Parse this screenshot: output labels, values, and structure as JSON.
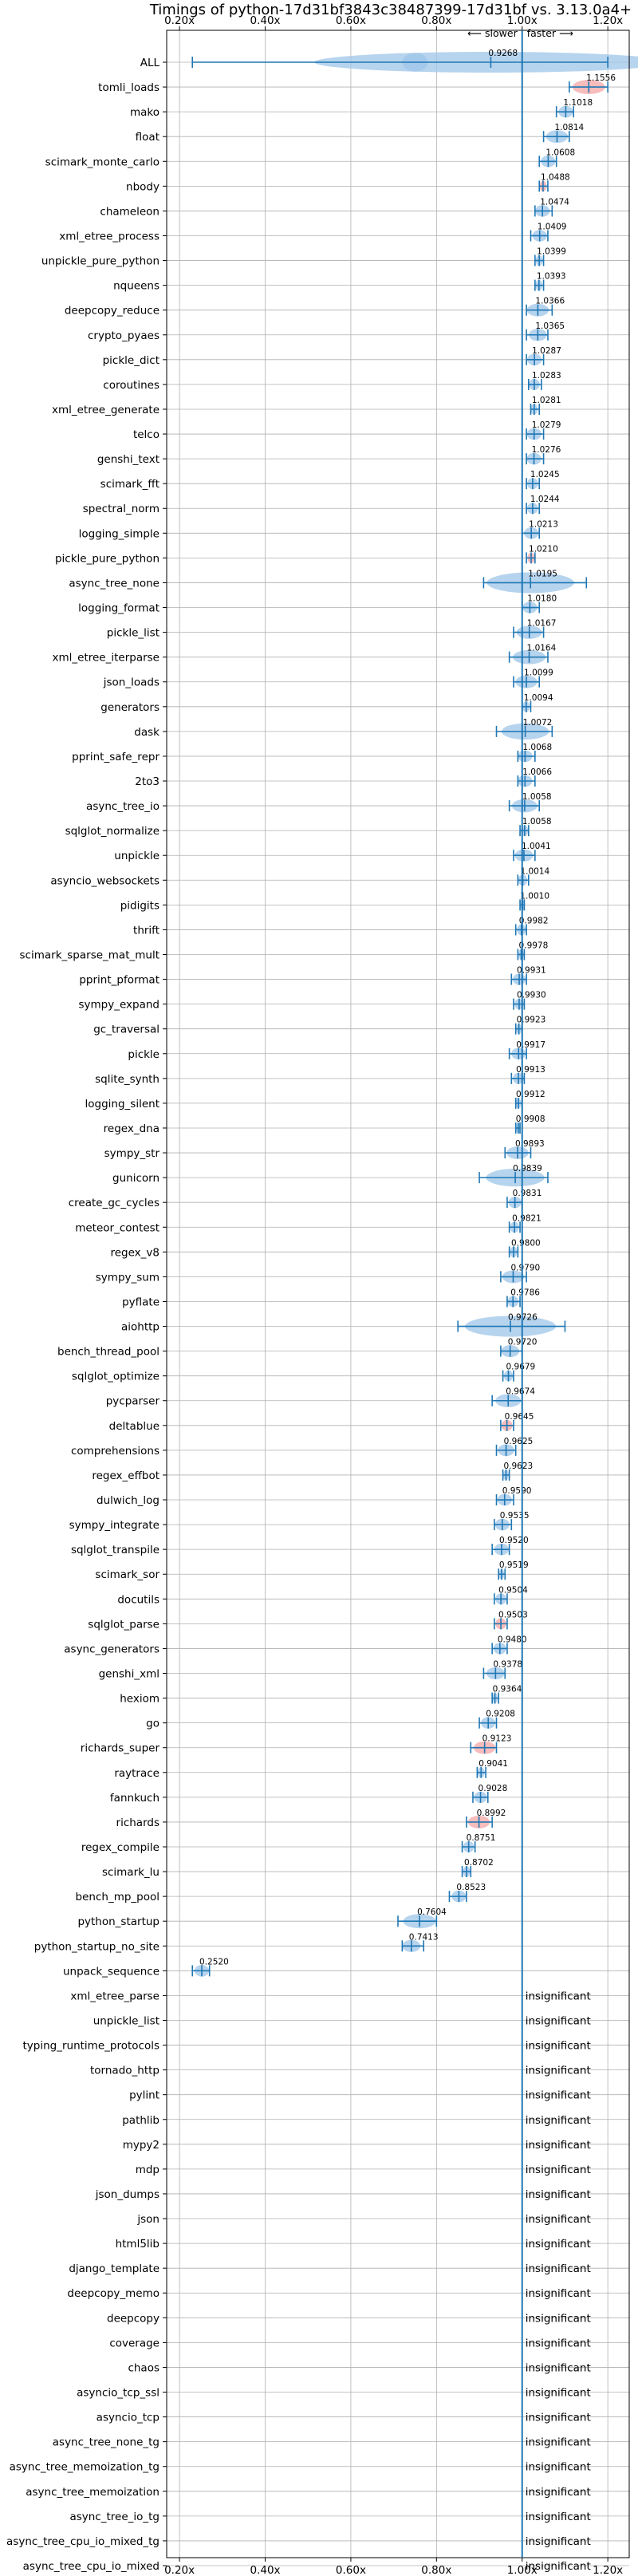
{
  "chart_data": {
    "type": "violin",
    "title": "Timings of python-17d31bf3843c38487399-17d31bf vs. 3.13.0a4+",
    "xlabel": "",
    "ylabel": "",
    "xlim": [
      0.17,
      1.25
    ],
    "xticks": [
      0.2,
      0.4,
      0.6,
      0.8,
      1.0,
      1.2
    ],
    "xtick_labels": [
      "0.20x",
      "0.40x",
      "0.60x",
      "0.80x",
      "1.00x",
      "1.20x"
    ],
    "grid": true,
    "slower_label": "⟵ slower",
    "faster_label": "faster ⟶",
    "insignificant_label": "insignificant",
    "colors": {
      "violin": "#9fc5e8",
      "highlight": "#f4a6a6",
      "line": "#1f77b4",
      "grid": "#b0b0b0"
    },
    "benchmarks": [
      {
        "name": "ALL",
        "value": 0.9268,
        "label": "0.9268",
        "lo": 0.23,
        "hi": 1.2,
        "spread": 0.12
      },
      {
        "name": "tomli_loads",
        "value": 1.1556,
        "label": "1.1556",
        "lo": 1.11,
        "hi": 1.2,
        "spread": 0.03,
        "hl": true
      },
      {
        "name": "mako",
        "value": 1.1018,
        "label": "1.1018",
        "lo": 1.08,
        "hi": 1.12,
        "spread": 0.02
      },
      {
        "name": "float",
        "value": 1.0814,
        "label": "1.0814",
        "lo": 1.05,
        "hi": 1.11,
        "spread": 0.025
      },
      {
        "name": "scimark_monte_carlo",
        "value": 1.0608,
        "label": "1.0608",
        "lo": 1.04,
        "hi": 1.08,
        "spread": 0.015
      },
      {
        "name": "nbody",
        "value": 1.0488,
        "label": "1.0488",
        "lo": 1.04,
        "hi": 1.06,
        "spread": 0.01,
        "hl": true
      },
      {
        "name": "chameleon",
        "value": 1.0474,
        "label": "1.0474",
        "lo": 1.03,
        "hi": 1.07,
        "spread": 0.015
      },
      {
        "name": "xml_etree_process",
        "value": 1.0409,
        "label": "1.0409",
        "lo": 1.02,
        "hi": 1.06,
        "spread": 0.015
      },
      {
        "name": "unpickle_pure_python",
        "value": 1.0399,
        "label": "1.0399",
        "lo": 1.03,
        "hi": 1.05,
        "spread": 0.008
      },
      {
        "name": "nqueens",
        "value": 1.0393,
        "label": "1.0393",
        "lo": 1.03,
        "hi": 1.05,
        "spread": 0.01
      },
      {
        "name": "deepcopy_reduce",
        "value": 1.0366,
        "label": "1.0366",
        "lo": 1.01,
        "hi": 1.07,
        "spread": 0.02
      },
      {
        "name": "crypto_pyaes",
        "value": 1.0365,
        "label": "1.0365",
        "lo": 1.01,
        "hi": 1.06,
        "spread": 0.02
      },
      {
        "name": "pickle_dict",
        "value": 1.0287,
        "label": "1.0287",
        "lo": 1.01,
        "hi": 1.05,
        "spread": 0.015
      },
      {
        "name": "coroutines",
        "value": 1.0283,
        "label": "1.0283",
        "lo": 1.015,
        "hi": 1.045,
        "spread": 0.01
      },
      {
        "name": "xml_etree_generate",
        "value": 1.0281,
        "label": "1.0281",
        "lo": 1.02,
        "hi": 1.04,
        "spread": 0.008
      },
      {
        "name": "telco",
        "value": 1.0279,
        "label": "1.0279",
        "lo": 1.01,
        "hi": 1.05,
        "spread": 0.012
      },
      {
        "name": "genshi_text",
        "value": 1.0276,
        "label": "1.0276",
        "lo": 1.01,
        "hi": 1.05,
        "spread": 0.015
      },
      {
        "name": "scimark_fft",
        "value": 1.0245,
        "label": "1.0245",
        "lo": 1.01,
        "hi": 1.04,
        "spread": 0.01
      },
      {
        "name": "spectral_norm",
        "value": 1.0244,
        "label": "1.0244",
        "lo": 1.01,
        "hi": 1.04,
        "spread": 0.01
      },
      {
        "name": "logging_simple",
        "value": 1.0213,
        "label": "1.0213",
        "lo": 1.0,
        "hi": 1.04,
        "spread": 0.015
      },
      {
        "name": "pickle_pure_python",
        "value": 1.021,
        "label": "1.0210",
        "lo": 1.01,
        "hi": 1.03,
        "spread": 0.01,
        "hl": true
      },
      {
        "name": "async_tree_none",
        "value": 1.0195,
        "label": "1.0195",
        "lo": 0.91,
        "hi": 1.15,
        "spread": 0.05
      },
      {
        "name": "logging_format",
        "value": 1.018,
        "label": "1.0180",
        "lo": 1.0,
        "hi": 1.04,
        "spread": 0.015
      },
      {
        "name": "pickle_list",
        "value": 1.0167,
        "label": "1.0167",
        "lo": 0.98,
        "hi": 1.05,
        "spread": 0.02
      },
      {
        "name": "xml_etree_iterparse",
        "value": 1.0164,
        "label": "1.0164",
        "lo": 0.97,
        "hi": 1.06,
        "spread": 0.02
      },
      {
        "name": "json_loads",
        "value": 1.0099,
        "label": "1.0099",
        "lo": 0.98,
        "hi": 1.04,
        "spread": 0.015
      },
      {
        "name": "generators",
        "value": 1.0094,
        "label": "1.0094",
        "lo": 1.0,
        "hi": 1.02,
        "spread": 0.006
      },
      {
        "name": "dask",
        "value": 1.0072,
        "label": "1.0072",
        "lo": 0.94,
        "hi": 1.07,
        "spread": 0.04
      },
      {
        "name": "pprint_safe_repr",
        "value": 1.0068,
        "label": "1.0068",
        "lo": 0.99,
        "hi": 1.03,
        "spread": 0.012
      },
      {
        "name": "2to3",
        "value": 1.0066,
        "label": "1.0066",
        "lo": 0.99,
        "hi": 1.03,
        "spread": 0.012
      },
      {
        "name": "async_tree_io",
        "value": 1.0058,
        "label": "1.0058",
        "lo": 0.97,
        "hi": 1.04,
        "spread": 0.02
      },
      {
        "name": "sqlglot_normalize",
        "value": 1.0058,
        "label": "1.0058",
        "lo": 0.995,
        "hi": 1.015,
        "spread": 0.006
      },
      {
        "name": "unpickle",
        "value": 1.0041,
        "label": "1.0041",
        "lo": 0.98,
        "hi": 1.03,
        "spread": 0.015
      },
      {
        "name": "asyncio_websockets",
        "value": 1.0014,
        "label": "1.0014",
        "lo": 0.99,
        "hi": 1.015,
        "spread": 0.01
      },
      {
        "name": "pidigits",
        "value": 1.001,
        "label": "1.0010",
        "lo": 0.995,
        "hi": 1.005,
        "spread": 0.004
      },
      {
        "name": "thrift",
        "value": 0.9982,
        "label": "0.9982",
        "lo": 0.985,
        "hi": 1.01,
        "spread": 0.01
      },
      {
        "name": "scimark_sparse_mat_mult",
        "value": 0.9978,
        "label": "0.9978",
        "lo": 0.99,
        "hi": 1.005,
        "spread": 0.005
      },
      {
        "name": "pprint_pformat",
        "value": 0.9931,
        "label": "0.9931",
        "lo": 0.975,
        "hi": 1.01,
        "spread": 0.012
      },
      {
        "name": "sympy_expand",
        "value": 0.993,
        "label": "0.9930",
        "lo": 0.98,
        "hi": 1.005,
        "spread": 0.01
      },
      {
        "name": "gc_traversal",
        "value": 0.9923,
        "label": "0.9923",
        "lo": 0.985,
        "hi": 1.0,
        "spread": 0.005
      },
      {
        "name": "pickle",
        "value": 0.9917,
        "label": "0.9917",
        "lo": 0.97,
        "hi": 1.01,
        "spread": 0.012
      },
      {
        "name": "sqlite_synth",
        "value": 0.9913,
        "label": "0.9913",
        "lo": 0.975,
        "hi": 1.005,
        "spread": 0.01
      },
      {
        "name": "logging_silent",
        "value": 0.9912,
        "label": "0.9912",
        "lo": 0.985,
        "hi": 1.0,
        "spread": 0.006
      },
      {
        "name": "regex_dna",
        "value": 0.9908,
        "label": "0.9908",
        "lo": 0.985,
        "hi": 0.995,
        "spread": 0.004
      },
      {
        "name": "sympy_str",
        "value": 0.9893,
        "label": "0.9893",
        "lo": 0.96,
        "hi": 1.02,
        "spread": 0.015
      },
      {
        "name": "gunicorn",
        "value": 0.9839,
        "label": "0.9839",
        "lo": 0.9,
        "hi": 1.06,
        "spread": 0.02
      },
      {
        "name": "create_gc_cycles",
        "value": 0.9831,
        "label": "0.9831",
        "lo": 0.965,
        "hi": 1.0,
        "spread": 0.01
      },
      {
        "name": "meteor_contest",
        "value": 0.9821,
        "label": "0.9821",
        "lo": 0.97,
        "hi": 0.995,
        "spread": 0.008
      },
      {
        "name": "regex_v8",
        "value": 0.98,
        "label": "0.9800",
        "lo": 0.97,
        "hi": 0.99,
        "spread": 0.006
      },
      {
        "name": "sympy_sum",
        "value": 0.979,
        "label": "0.9790",
        "lo": 0.95,
        "hi": 1.01,
        "spread": 0.015
      },
      {
        "name": "pyflate",
        "value": 0.9786,
        "label": "0.9786",
        "lo": 0.965,
        "hi": 0.995,
        "spread": 0.008
      },
      {
        "name": "aiohttp",
        "value": 0.9726,
        "label": "0.9726",
        "lo": 0.85,
        "hi": 1.1,
        "spread": 0.04
      },
      {
        "name": "bench_thread_pool",
        "value": 0.972,
        "label": "0.9720",
        "lo": 0.95,
        "hi": 1.0,
        "spread": 0.015
      },
      {
        "name": "sqlglot_optimize",
        "value": 0.9679,
        "label": "0.9679",
        "lo": 0.955,
        "hi": 0.98,
        "spread": 0.008
      },
      {
        "name": "pycparser",
        "value": 0.9674,
        "label": "0.9674",
        "lo": 0.93,
        "hi": 1.0,
        "spread": 0.02
      },
      {
        "name": "deltablue",
        "value": 0.9645,
        "label": "0.9645",
        "lo": 0.95,
        "hi": 0.98,
        "spread": 0.01,
        "hl": true
      },
      {
        "name": "comprehensions",
        "value": 0.9625,
        "label": "0.9625",
        "lo": 0.94,
        "hi": 0.985,
        "spread": 0.01
      },
      {
        "name": "regex_effbot",
        "value": 0.9623,
        "label": "0.9623",
        "lo": 0.955,
        "hi": 0.97,
        "spread": 0.005
      },
      {
        "name": "dulwich_log",
        "value": 0.959,
        "label": "0.9590",
        "lo": 0.94,
        "hi": 0.98,
        "spread": 0.01
      },
      {
        "name": "sympy_integrate",
        "value": 0.9535,
        "label": "0.9535",
        "lo": 0.935,
        "hi": 0.975,
        "spread": 0.012
      },
      {
        "name": "sqlglot_transpile",
        "value": 0.952,
        "label": "0.9520",
        "lo": 0.93,
        "hi": 0.97,
        "spread": 0.01
      },
      {
        "name": "scimark_sor",
        "value": 0.9519,
        "label": "0.9519",
        "lo": 0.945,
        "hi": 0.96,
        "spread": 0.005
      },
      {
        "name": "docutils",
        "value": 0.9504,
        "label": "0.9504",
        "lo": 0.935,
        "hi": 0.965,
        "spread": 0.008
      },
      {
        "name": "sqlglot_parse",
        "value": 0.9503,
        "label": "0.9503",
        "lo": 0.935,
        "hi": 0.965,
        "spread": 0.012,
        "hl": true
      },
      {
        "name": "async_generators",
        "value": 0.948,
        "label": "0.9480",
        "lo": 0.93,
        "hi": 0.965,
        "spread": 0.01
      },
      {
        "name": "genshi_xml",
        "value": 0.9378,
        "label": "0.9378",
        "lo": 0.91,
        "hi": 0.96,
        "spread": 0.015
      },
      {
        "name": "hexiom",
        "value": 0.9364,
        "label": "0.9364",
        "lo": 0.93,
        "hi": 0.945,
        "spread": 0.005
      },
      {
        "name": "go",
        "value": 0.9208,
        "label": "0.9208",
        "lo": 0.9,
        "hi": 0.94,
        "spread": 0.012
      },
      {
        "name": "richards_super",
        "value": 0.9123,
        "label": "0.9123",
        "lo": 0.88,
        "hi": 0.94,
        "spread": 0.015,
        "hl": true
      },
      {
        "name": "raytrace",
        "value": 0.9041,
        "label": "0.9041",
        "lo": 0.895,
        "hi": 0.915,
        "spread": 0.006
      },
      {
        "name": "fannkuch",
        "value": 0.9028,
        "label": "0.9028",
        "lo": 0.885,
        "hi": 0.92,
        "spread": 0.01
      },
      {
        "name": "richards",
        "value": 0.8992,
        "label": "0.8992",
        "lo": 0.87,
        "hi": 0.93,
        "spread": 0.015,
        "hl": true
      },
      {
        "name": "regex_compile",
        "value": 0.8751,
        "label": "0.8751",
        "lo": 0.86,
        "hi": 0.89,
        "spread": 0.008
      },
      {
        "name": "scimark_lu",
        "value": 0.8702,
        "label": "0.8702",
        "lo": 0.86,
        "hi": 0.88,
        "spread": 0.006
      },
      {
        "name": "bench_mp_pool",
        "value": 0.8523,
        "label": "0.8523",
        "lo": 0.83,
        "hi": 0.87,
        "spread": 0.01
      },
      {
        "name": "python_startup",
        "value": 0.7604,
        "label": "0.7604",
        "lo": 0.71,
        "hi": 0.8,
        "spread": 0.02
      },
      {
        "name": "python_startup_no_site",
        "value": 0.7413,
        "label": "0.7413",
        "lo": 0.72,
        "hi": 0.77,
        "spread": 0.02
      },
      {
        "name": "unpack_sequence",
        "value": 0.252,
        "label": "0.2520",
        "lo": 0.23,
        "hi": 0.27,
        "spread": 0.02
      },
      {
        "name": "xml_etree_parse",
        "insignificant": true
      },
      {
        "name": "unpickle_list",
        "insignificant": true
      },
      {
        "name": "typing_runtime_protocols",
        "insignificant": true
      },
      {
        "name": "tornado_http",
        "insignificant": true
      },
      {
        "name": "pylint",
        "insignificant": true
      },
      {
        "name": "pathlib",
        "insignificant": true
      },
      {
        "name": "mypy2",
        "insignificant": true
      },
      {
        "name": "mdp",
        "insignificant": true
      },
      {
        "name": "json_dumps",
        "insignificant": true
      },
      {
        "name": "json",
        "insignificant": true
      },
      {
        "name": "html5lib",
        "insignificant": true
      },
      {
        "name": "django_template",
        "insignificant": true
      },
      {
        "name": "deepcopy_memo",
        "insignificant": true
      },
      {
        "name": "deepcopy",
        "insignificant": true
      },
      {
        "name": "coverage",
        "insignificant": true
      },
      {
        "name": "chaos",
        "insignificant": true
      },
      {
        "name": "asyncio_tcp_ssl",
        "insignificant": true
      },
      {
        "name": "asyncio_tcp",
        "insignificant": true
      },
      {
        "name": "async_tree_none_tg",
        "insignificant": true
      },
      {
        "name": "async_tree_memoization_tg",
        "insignificant": true
      },
      {
        "name": "async_tree_memoization",
        "insignificant": true
      },
      {
        "name": "async_tree_io_tg",
        "insignificant": true
      },
      {
        "name": "async_tree_cpu_io_mixed_tg",
        "insignificant": true
      },
      {
        "name": "async_tree_cpu_io_mixed",
        "insignificant": true
      }
    ]
  }
}
